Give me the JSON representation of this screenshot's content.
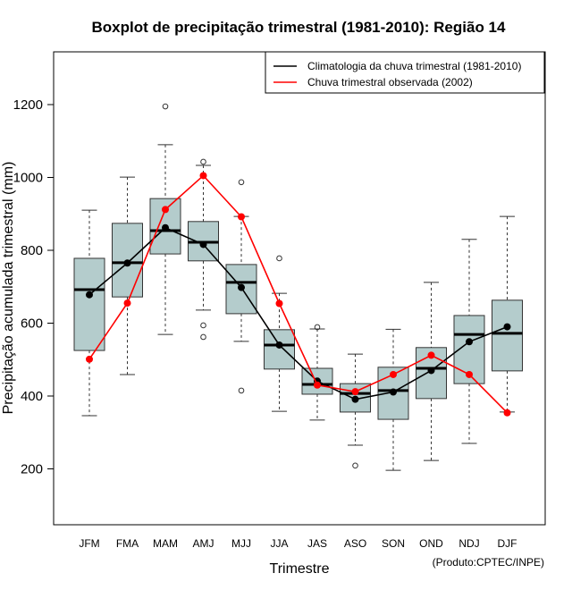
{
  "chart_data": {
    "type": "boxplot",
    "title": "Boxplot de precipitação trimestral (1981-2010): Região 14",
    "xlabel": "Trimestre",
    "ylabel": "Precipitação acumulada trimestral (mm)",
    "ylim": [
      40,
      1335
    ],
    "yticks": [
      200,
      400,
      600,
      800,
      1000,
      1200
    ],
    "categories": [
      "JFM",
      "FMA",
      "MAM",
      "AMJ",
      "MJJ",
      "JJA",
      "JAS",
      "ASO",
      "SON",
      "OND",
      "NDJ",
      "DJF"
    ],
    "boxes": [
      {
        "low": 346,
        "q1": 525,
        "median": 692,
        "q3": 778,
        "high": 910,
        "outliers": []
      },
      {
        "low": 459,
        "q1": 672,
        "median": 766,
        "q3": 874,
        "high": 1001,
        "outliers": []
      },
      {
        "low": 569,
        "q1": 790,
        "median": 854,
        "q3": 942,
        "high": 1090,
        "outliers": [
          1195
        ]
      },
      {
        "low": 636,
        "q1": 771,
        "median": 822,
        "q3": 879,
        "high": 1033,
        "outliers": [
          1043,
          594,
          562
        ]
      },
      {
        "low": 550,
        "q1": 626,
        "median": 712,
        "q3": 761,
        "high": 893,
        "outliers": [
          987,
          415
        ]
      },
      {
        "low": 358,
        "q1": 474,
        "median": 540,
        "q3": 582,
        "high": 682,
        "outliers": [
          778
        ]
      },
      {
        "low": 334,
        "q1": 405,
        "median": 432,
        "q3": 476,
        "high": 584,
        "outliers": [
          589
        ]
      },
      {
        "low": 265,
        "q1": 356,
        "median": 407,
        "q3": 434,
        "high": 515,
        "outliers": [
          209
        ]
      },
      {
        "low": 196,
        "q1": 336,
        "median": 415,
        "q3": 479,
        "high": 583,
        "outliers": []
      },
      {
        "low": 223,
        "q1": 393,
        "median": 476,
        "q3": 533,
        "high": 712,
        "outliers": []
      },
      {
        "low": 270,
        "q1": 434,
        "median": 569,
        "q3": 621,
        "high": 830,
        "outliers": []
      },
      {
        "low": 356,
        "q1": 469,
        "median": 572,
        "q3": 663,
        "high": 893,
        "outliers": []
      }
    ],
    "series": [
      {
        "name": "Climatologia da chuva trimestral (1981-2010)",
        "color": "#000000",
        "values": [
          678,
          765,
          862,
          816,
          698,
          540,
          441,
          391,
          411,
          470,
          549,
          590
        ]
      },
      {
        "name": "Chuva trimestral observada (2002)",
        "color": "#ff0000",
        "values": [
          501,
          655,
          912,
          1005,
          892,
          654,
          430,
          412,
          459,
          512,
          459,
          354
        ]
      }
    ],
    "box_color": "#b4cccc",
    "legend_position": "top-right",
    "credit": "(Produto:CPTEC/INPE)"
  }
}
